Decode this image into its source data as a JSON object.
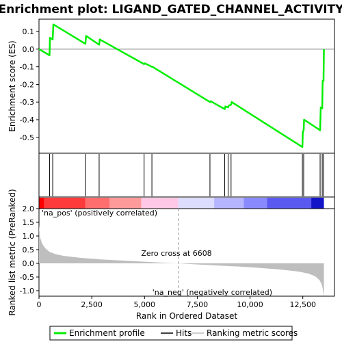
{
  "chart_data": {
    "type": "line",
    "title": "Enrichment plot: LIGAND_GATED_CHANNEL_ACTIVITY",
    "top_panel": {
      "ylabel": "Enrichment score (ES)",
      "ylim": [
        -0.59,
        0.17
      ],
      "yticks": [
        0.1,
        0.0,
        -0.1,
        -0.2,
        -0.3,
        -0.4,
        -0.5
      ],
      "ytick_labels": [
        "0.1",
        "0.0",
        "-0.1",
        "-0.2",
        "-0.3",
        "-0.4",
        "-0.5"
      ],
      "series": {
        "name": "Enrichment profile",
        "color": "#00ee00",
        "x": [
          0,
          500,
          520,
          650,
          680,
          2200,
          2230,
          2850,
          2880,
          4980,
          5010,
          5350,
          5380,
          8100,
          8130,
          8800,
          8830,
          8960,
          8990,
          9100,
          9130,
          12480,
          12500,
          12540,
          12560,
          13320,
          13350,
          13420,
          13440,
          13480,
          13500
        ],
        "y": [
          0.0,
          -0.035,
          0.065,
          0.055,
          0.14,
          0.03,
          0.075,
          0.025,
          0.055,
          -0.085,
          -0.08,
          -0.1,
          -0.1,
          -0.3,
          -0.295,
          -0.34,
          -0.325,
          -0.33,
          -0.32,
          -0.315,
          -0.3,
          -0.555,
          -0.47,
          -0.46,
          -0.4,
          -0.46,
          -0.33,
          -0.335,
          -0.18,
          -0.18,
          0.0
        ]
      }
    },
    "hits_panel": {
      "color": "#000000",
      "hit_ranks": [
        500,
        650,
        2200,
        2850,
        4980,
        5350,
        8100,
        8800,
        8960,
        9100,
        12480,
        12540,
        13320,
        13420,
        13480
      ]
    },
    "color_bar": {
      "segments": [
        {
          "start": 0,
          "end": 250,
          "color": "#ff0000"
        },
        {
          "start": 250,
          "end": 2200,
          "color": "#ff3a3a"
        },
        {
          "start": 2200,
          "end": 3350,
          "color": "#ff6e6e"
        },
        {
          "start": 3350,
          "end": 4850,
          "color": "#ff9a9a"
        },
        {
          "start": 4850,
          "end": 6600,
          "color": "#ffc8e6"
        },
        {
          "start": 6600,
          "end": 8300,
          "color": "#dcdcff"
        },
        {
          "start": 8300,
          "end": 9700,
          "color": "#b4b4ff"
        },
        {
          "start": 9700,
          "end": 10800,
          "color": "#8a8aff"
        },
        {
          "start": 10800,
          "end": 12900,
          "color": "#5a5af0"
        },
        {
          "start": 12900,
          "end": 13500,
          "color": "#1414c8"
        }
      ]
    },
    "bottom_panel": {
      "ylabel": "Ranked list metric (PreRanked)",
      "xlabel": "Rank in Ordered Dataset",
      "xlim": [
        0,
        14000
      ],
      "ylim": [
        -1.2,
        2.0
      ],
      "yticks": [
        2.0,
        1.5,
        1.0,
        0.5,
        0.0,
        -0.5,
        -1.0
      ],
      "ytick_labels": [
        "2.0",
        "1.5",
        "1.0",
        "0.5",
        "0.0",
        "-0.5",
        "-1.0"
      ],
      "xticks": [
        0,
        2500,
        5000,
        7500,
        10000,
        12500
      ],
      "xtick_labels": [
        "0",
        "2,500",
        "5,000",
        "7,500",
        "10,000",
        "12,500"
      ],
      "metric_x": [
        0,
        50,
        150,
        300,
        500,
        800,
        1200,
        2000,
        3000,
        4000,
        5000,
        6000,
        6608,
        7500,
        8500,
        9500,
        10500,
        11500,
        12300,
        12800,
        13100,
        13300,
        13400,
        13450,
        13500
      ],
      "metric_y": [
        1.4,
        0.95,
        0.72,
        0.55,
        0.42,
        0.33,
        0.27,
        0.2,
        0.14,
        0.1,
        0.06,
        0.02,
        0.0,
        -0.04,
        -0.08,
        -0.12,
        -0.17,
        -0.23,
        -0.3,
        -0.38,
        -0.48,
        -0.62,
        -0.78,
        -0.95,
        -1.2
      ],
      "fill_color": "#bebebe",
      "zero_cross_label": "Zero cross at 6608",
      "zero_cross_rank": 6608,
      "pos_label": "'na_pos' (positively correlated)",
      "neg_label": "'na_neg' (negatively correlated)",
      "pos_label_color": "#cc0000",
      "neg_label_color": "#0000cc"
    },
    "legend": {
      "items": [
        {
          "label": "Enrichment profile",
          "color": "#00ee00"
        },
        {
          "label": "Hits",
          "color": "#000000"
        },
        {
          "label": "Ranking metric scores",
          "color": "#bebebe"
        }
      ]
    }
  }
}
